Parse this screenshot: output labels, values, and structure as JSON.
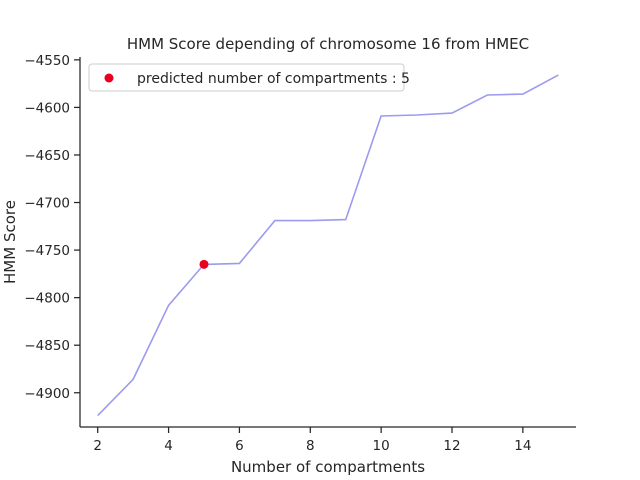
{
  "chart_data": {
    "type": "line",
    "title": "HMM Score depending of chromosome 16 from HMEC",
    "xlabel": "Number of compartments",
    "ylabel": "HMM Score",
    "xlim": [
      1.5,
      15.5
    ],
    "ylim": [
      -4936,
      -4547
    ],
    "xticks": [
      2,
      4,
      6,
      8,
      10,
      12,
      14
    ],
    "yticks": [
      -4550,
      -4600,
      -4650,
      -4700,
      -4750,
      -4800,
      -4850,
      -4900
    ],
    "grid": false,
    "legend_position": "top-left",
    "series": [
      {
        "color": "#9b9bef",
        "x": [
          2,
          3,
          4,
          5,
          6,
          7,
          8,
          9,
          10,
          11,
          12,
          13,
          14,
          15
        ],
        "y": [
          -4924,
          -4886,
          -4808,
          -4765,
          -4764,
          -4719,
          -4719,
          -4718,
          -4609,
          -4608,
          -4606,
          -4587,
          -4586,
          -4566
        ]
      }
    ],
    "highlight": {
      "name": "predicted number of compartments : 5",
      "color": "#e8001c",
      "x": 5,
      "y": -4765
    }
  }
}
